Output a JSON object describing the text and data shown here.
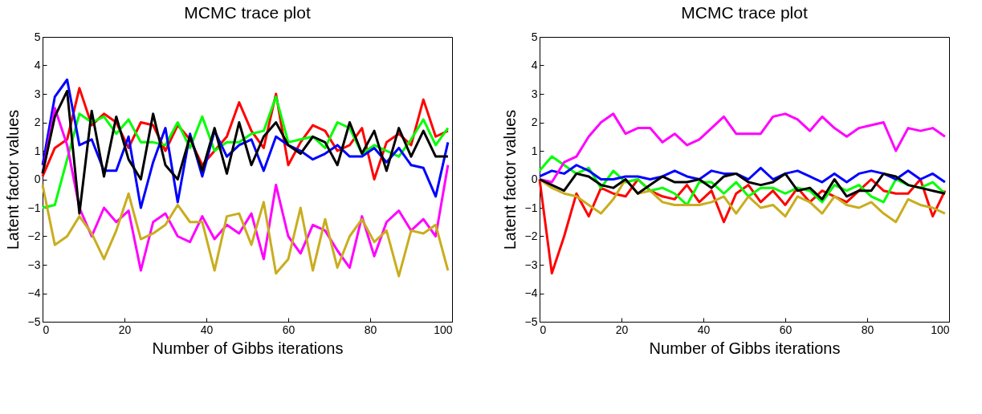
{
  "chart_data": [
    {
      "type": "line",
      "title": "MCMC trace plot",
      "xlabel": "Number of Gibbs iterations",
      "ylabel": "Latent factor values",
      "x": [
        0,
        3,
        6,
        9,
        12,
        15,
        18,
        21,
        24,
        27,
        30,
        33,
        36,
        39,
        42,
        45,
        48,
        51,
        54,
        57,
        60,
        63,
        66,
        69,
        72,
        75,
        78,
        81,
        84,
        87,
        90,
        93,
        96,
        99
      ],
      "xlim": [
        0,
        100
      ],
      "xticks": [
        0,
        20,
        40,
        60,
        80,
        100
      ],
      "ylim": [
        -5,
        5
      ],
      "yticks": [
        -5,
        -4,
        -3,
        -2,
        -1,
        0,
        1,
        2,
        3,
        4,
        5
      ],
      "grid": false,
      "legend": false,
      "series": [
        {
          "color": "#ff0000",
          "values": [
            0.1,
            1.1,
            1.4,
            3.2,
            1.9,
            2.3,
            2.0,
            1.1,
            2.0,
            1.9,
            1.0,
            1.9,
            1.4,
            0.5,
            1.0,
            1.5,
            2.7,
            1.7,
            1.1,
            3.0,
            0.5,
            1.3,
            1.9,
            1.7,
            1.0,
            1.2,
            1.8,
            0.0,
            1.3,
            1.6,
            1.2,
            2.8,
            1.5,
            1.7
          ]
        },
        {
          "color": "#00ff00",
          "values": [
            -1.0,
            -0.9,
            0.7,
            2.3,
            2.0,
            2.2,
            1.6,
            2.1,
            1.3,
            1.3,
            1.2,
            2.0,
            1.1,
            2.2,
            1.0,
            1.3,
            1.3,
            1.6,
            1.7,
            2.9,
            1.3,
            1.4,
            1.5,
            1.1,
            2.0,
            1.8,
            0.9,
            1.2,
            1.0,
            0.8,
            1.4,
            2.1,
            1.2,
            1.8
          ]
        },
        {
          "color": "#0000ff",
          "values": [
            0.5,
            2.9,
            3.5,
            1.2,
            1.4,
            0.3,
            0.3,
            1.5,
            -1.0,
            0.6,
            1.8,
            -0.8,
            1.6,
            0.1,
            1.7,
            0.8,
            1.2,
            1.4,
            0.3,
            1.5,
            1.2,
            1.0,
            0.7,
            0.9,
            1.2,
            0.8,
            0.8,
            1.1,
            0.6,
            1.1,
            0.5,
            0.4,
            -0.6,
            1.3
          ]
        },
        {
          "color": "#ff00ff",
          "values": [
            0.2,
            2.5,
            1.2,
            -1.0,
            -2.0,
            -1.0,
            -1.5,
            -1.1,
            -3.2,
            -1.5,
            -1.2,
            -2.0,
            -2.2,
            -1.3,
            -2.1,
            -1.6,
            -1.9,
            -1.2,
            -2.8,
            -0.2,
            -2.0,
            -2.6,
            -1.6,
            -1.8,
            -2.5,
            -3.1,
            -1.3,
            -2.7,
            -1.5,
            -1.1,
            -1.8,
            -1.4,
            -2.0,
            0.5
          ]
        },
        {
          "color": "#c9ad1e",
          "values": [
            -0.2,
            -2.3,
            -2.0,
            -1.3,
            -1.9,
            -2.8,
            -1.8,
            -0.5,
            -2.1,
            -1.9,
            -1.6,
            -0.9,
            -1.5,
            -1.5,
            -3.2,
            -1.3,
            -1.2,
            -2.3,
            -0.8,
            -3.3,
            -2.8,
            -1.0,
            -3.2,
            -1.4,
            -3.1,
            -2.0,
            -1.4,
            -2.2,
            -1.8,
            -3.4,
            -1.8,
            -1.9,
            -1.6,
            -3.2
          ]
        },
        {
          "color": "#000000",
          "values": [
            0.2,
            2.2,
            3.1,
            -1.2,
            2.4,
            0.1,
            2.2,
            0.7,
            0.0,
            2.3,
            0.5,
            0.0,
            1.5,
            0.3,
            1.8,
            0.2,
            2.0,
            0.5,
            1.5,
            2.0,
            1.2,
            0.9,
            1.5,
            1.3,
            0.5,
            2.0,
            0.9,
            1.7,
            0.3,
            1.8,
            0.8,
            1.7,
            0.8,
            0.8
          ]
        }
      ]
    },
    {
      "type": "line",
      "title": "MCMC trace plot",
      "xlabel": "Number of Gibbs iterations",
      "ylabel": "Latent factor values",
      "x": [
        0,
        3,
        6,
        9,
        12,
        15,
        18,
        21,
        24,
        27,
        30,
        33,
        36,
        39,
        42,
        45,
        48,
        51,
        54,
        57,
        60,
        63,
        66,
        69,
        72,
        75,
        78,
        81,
        84,
        87,
        90,
        93,
        96,
        99
      ],
      "xlim": [
        0,
        100
      ],
      "xticks": [
        0,
        20,
        40,
        60,
        80,
        100
      ],
      "ylim": [
        -5,
        5
      ],
      "yticks": [
        -5,
        -4,
        -3,
        -2,
        -1,
        0,
        1,
        2,
        3,
        4,
        5
      ],
      "grid": false,
      "legend": false,
      "series": [
        {
          "color": "#ff0000",
          "values": [
            0,
            -3.3,
            -2.0,
            -0.5,
            -1.3,
            -0.3,
            -0.5,
            -0.6,
            0,
            -0.4,
            -0.6,
            -0.7,
            -0.2,
            -0.8,
            -0.4,
            -1.5,
            -0.5,
            -0.2,
            -0.8,
            -0.4,
            -0.9,
            -0.3,
            -0.8,
            -0.4,
            -0.6,
            -0.8,
            -0.4,
            0,
            -0.4,
            -0.5,
            -0.5,
            0,
            -1.3,
            -0.4
          ]
        },
        {
          "color": "#00ff00",
          "values": [
            0.3,
            0.8,
            0.5,
            0.2,
            0.4,
            -0.3,
            0.3,
            -0.1,
            0,
            -0.4,
            -0.3,
            -0.5,
            -0.9,
            -0.1,
            -0.1,
            -0.5,
            -0.1,
            -0.6,
            -0.3,
            -0.3,
            -0.5,
            -0.3,
            -0.4,
            -0.8,
            -0.2,
            -0.4,
            -0.2,
            -0.6,
            -0.8,
            0,
            -0.2,
            -0.3,
            -0.1,
            -0.5
          ]
        },
        {
          "color": "#0000ff",
          "values": [
            0.1,
            0.3,
            0.2,
            0.5,
            0.3,
            0.0,
            0,
            0.1,
            0.1,
            0.0,
            0.1,
            0.3,
            0.1,
            0.0,
            0.3,
            0.2,
            0.2,
            0.0,
            0.4,
            0.0,
            0.2,
            0.3,
            0.1,
            -0.1,
            0.2,
            -0.1,
            0.2,
            0.3,
            0.2,
            0.0,
            0.3,
            0.0,
            0.2,
            -0.1
          ]
        },
        {
          "color": "#ff00ff",
          "values": [
            0,
            -0.1,
            0.6,
            0.8,
            1.5,
            2.0,
            2.3,
            1.6,
            1.8,
            1.8,
            1.3,
            1.6,
            1.2,
            1.4,
            1.8,
            2.2,
            1.6,
            1.6,
            1.6,
            2.2,
            2.3,
            2.1,
            1.7,
            2.2,
            1.8,
            1.5,
            1.8,
            1.9,
            2.0,
            1.0,
            1.8,
            1.7,
            1.8,
            1.5
          ]
        },
        {
          "color": "#c9ad1e",
          "values": [
            0,
            -0.3,
            -0.5,
            -0.6,
            -0.9,
            -1.2,
            -0.7,
            0.0,
            -0.5,
            -0.4,
            -0.8,
            -0.9,
            -0.9,
            -0.9,
            -0.8,
            -0.6,
            -1.2,
            -0.6,
            -1.0,
            -0.9,
            -1.3,
            -0.6,
            -0.8,
            -1.2,
            -0.6,
            -0.9,
            -1.0,
            -0.8,
            -1.2,
            -1.5,
            -0.7,
            -0.9,
            -1.0,
            -1.2
          ]
        },
        {
          "color": "#000000",
          "values": [
            0,
            -0.2,
            -0.4,
            0.2,
            0.1,
            -0.2,
            -0.3,
            0.0,
            -0.5,
            -0.2,
            0.1,
            -0.1,
            -0.1,
            0.0,
            -0.3,
            0.1,
            0.2,
            -0.1,
            -0.2,
            -0.1,
            0.2,
            -0.4,
            -0.3,
            -0.7,
            0.0,
            -0.6,
            -0.4,
            -0.4,
            0.2,
            0.1,
            -0.2,
            -0.3,
            -0.4,
            -0.5
          ]
        }
      ]
    }
  ]
}
